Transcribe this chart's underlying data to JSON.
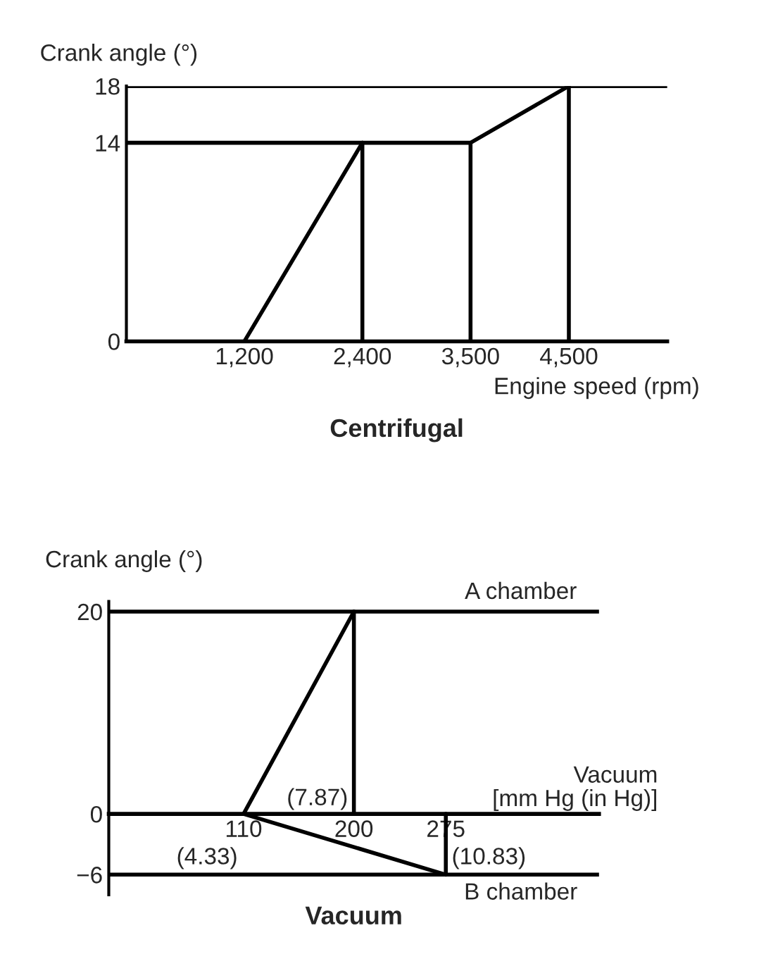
{
  "chart_data": [
    {
      "type": "line",
      "title": "Centrifugal",
      "xlabel": "Engine speed (rpm)",
      "ylabel": "Crank angle (°)",
      "xlim": [
        0,
        5500
      ],
      "ylim": [
        0,
        18
      ],
      "xticks": [
        {
          "value": 1200,
          "label": "1,200"
        },
        {
          "value": 2400,
          "label": "2,400"
        },
        {
          "value": 3500,
          "label": "3,500"
        },
        {
          "value": 4500,
          "label": "4,500"
        }
      ],
      "yticks": [
        0,
        14,
        18
      ],
      "grid": false,
      "line_style": "solid",
      "marker": "none",
      "series": [
        {
          "color": "#000000",
          "x": [
            1200,
            2400,
            3500,
            4500,
            5500
          ],
          "values": [
            0,
            14,
            14,
            18,
            18
          ]
        },
        {
          "color": "#000000",
          "x": [
            0,
            2400
          ],
          "values": [
            14,
            14
          ]
        },
        {
          "color": "#000000",
          "x": [
            0,
            4500
          ],
          "values": [
            18,
            18
          ]
        },
        {
          "color": "#000000",
          "x": [
            2400,
            2400
          ],
          "values": [
            0,
            14
          ]
        },
        {
          "color": "#000000",
          "x": [
            3500,
            3500
          ],
          "values": [
            0,
            14
          ]
        },
        {
          "color": "#000000",
          "x": [
            4500,
            4500
          ],
          "values": [
            0,
            18
          ]
        }
      ]
    },
    {
      "type": "line",
      "title": "Vacuum",
      "xlabel": "Vacuum\n[mm Hg (in Hg)]",
      "ylabel": "Crank angle (°)",
      "xlim": [
        0,
        400
      ],
      "ylim": [
        -8,
        21
      ],
      "xticks": [
        110,
        200,
        275
      ],
      "annotations": [
        {
          "text": "(4.33)",
          "x": 110,
          "y": 0
        },
        {
          "text": "(7.87)",
          "x": 200,
          "y": 0
        },
        {
          "text": "(10.83)",
          "x": 275,
          "y": 0
        }
      ],
      "yticks": [
        {
          "value": -6,
          "label": "−6"
        },
        0,
        20
      ],
      "grid": false,
      "line_style": "solid",
      "marker": "none",
      "series": [
        {
          "name": "A chamber",
          "color": "#000000",
          "x": [
            0,
            400
          ],
          "values": [
            20,
            20
          ]
        },
        {
          "name": "B chamber",
          "color": "#000000",
          "x": [
            0,
            400
          ],
          "values": [
            -6,
            -6
          ]
        },
        {
          "color": "#000000",
          "x": [
            110,
            200
          ],
          "values": [
            0,
            20
          ]
        },
        {
          "color": "#000000",
          "x": [
            110,
            275
          ],
          "values": [
            0,
            -6
          ]
        },
        {
          "color": "#000000",
          "x": [
            200,
            200
          ],
          "values": [
            0,
            20
          ]
        },
        {
          "color": "#000000",
          "x": [
            275,
            275
          ],
          "values": [
            0,
            -6
          ]
        }
      ]
    }
  ]
}
